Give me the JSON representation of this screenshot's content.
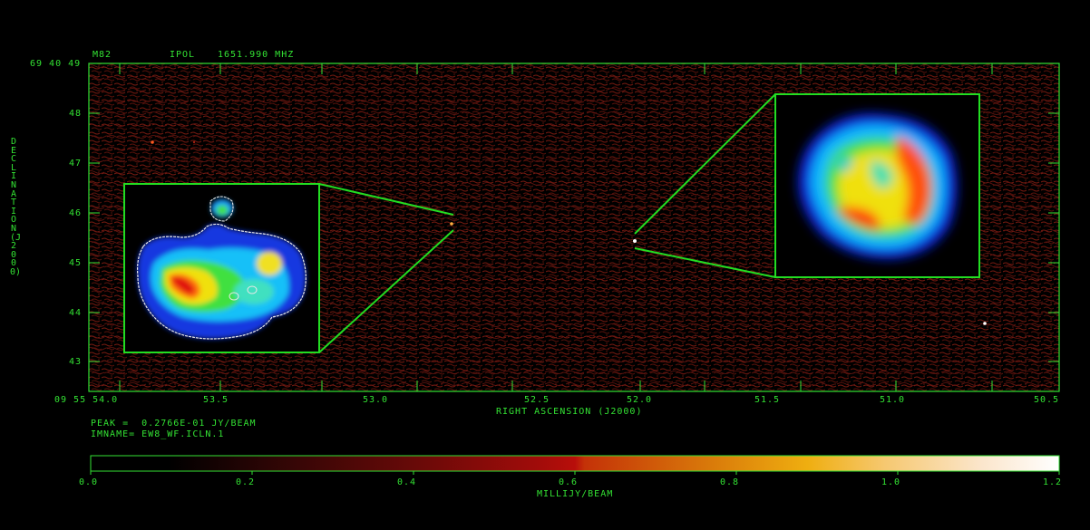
{
  "header": {
    "source": "M82",
    "stokes": "IPOL",
    "frequency": "1651.990 MHZ"
  },
  "axes": {
    "ylabel": "DECLINATION (J2000)",
    "xlabel": "RIGHT ASCENSION (J2000)",
    "y_origin_label": "69 40 49",
    "x_origin_label": "09 55 54.0",
    "y_ticks": [
      "48",
      "47",
      "46",
      "45",
      "44",
      "43"
    ],
    "x_ticks": [
      "53.5",
      "53.0",
      "52.5",
      "52.0",
      "51.5",
      "51.0",
      "50.5"
    ]
  },
  "info": {
    "peak": "PEAK =  0.2766E-01 JY/BEAM",
    "imname": "IMNAME= EW8_WF.ICLN.1"
  },
  "colorbar": {
    "label": "MILLIJY/BEAM",
    "ticks": [
      "0.0",
      "0.2",
      "0.4",
      "0.6",
      "0.8",
      "1.0",
      "1.2"
    ],
    "range": [
      0.0,
      1.2
    ]
  },
  "colors": {
    "axis": "#33e233",
    "noise": "#7a1a10",
    "frame": "#22dd22"
  }
}
